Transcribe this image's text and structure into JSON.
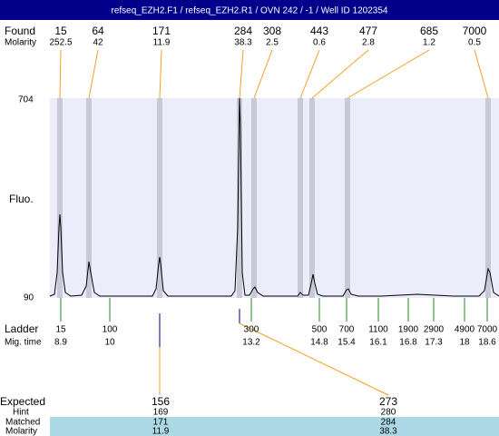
{
  "header": {
    "title": "refseq_EZH2.F1 / refseq_EZH2.R1 / OVN 242 / -1 / Well ID 1202354"
  },
  "found": {
    "label": "Found",
    "molarity_label": "Molarity",
    "peaks": [
      {
        "size": 15,
        "molarity": 252.5
      },
      {
        "size": 64,
        "molarity": 42
      },
      {
        "size": 171,
        "molarity": 11.9
      },
      {
        "size": 284,
        "molarity": 38.3
      },
      {
        "size": 308,
        "molarity": 2.5
      },
      {
        "size": 443,
        "molarity": 0.6
      },
      {
        "size": 477,
        "molarity": 2.8
      },
      {
        "size": 685,
        "molarity": 1.2
      },
      {
        "size": 7000,
        "molarity": 0.5
      }
    ]
  },
  "axis": {
    "top": 704,
    "bottom": 90,
    "label": "Fluo."
  },
  "ladder": {
    "label": "Ladder",
    "mig_label": "Mig. time",
    "items": [
      {
        "size": 15,
        "time": 8.9
      },
      {
        "size": 100,
        "time": 10
      },
      {
        "size": 300,
        "time": 13.2
      },
      {
        "size": 500,
        "time": 14.8
      },
      {
        "size": 700,
        "time": 15.4
      },
      {
        "size": 1100,
        "time": 16.1
      },
      {
        "size": 1900,
        "time": 16.8
      },
      {
        "size": 2900,
        "time": 17.3
      },
      {
        "size": 4900,
        "time": 18
      },
      {
        "size": 7000,
        "time": 18.6
      }
    ]
  },
  "expected": {
    "label": "Expected",
    "hint_label": "Hint",
    "matched_label": "Matched",
    "molarity_label": "Molarity",
    "items": [
      {
        "expected": 156,
        "hint": 169,
        "matched": 171,
        "molarity": 11.9
      },
      {
        "expected": 273,
        "hint": 280,
        "matched": 284,
        "molarity": 38.3
      }
    ]
  }
}
